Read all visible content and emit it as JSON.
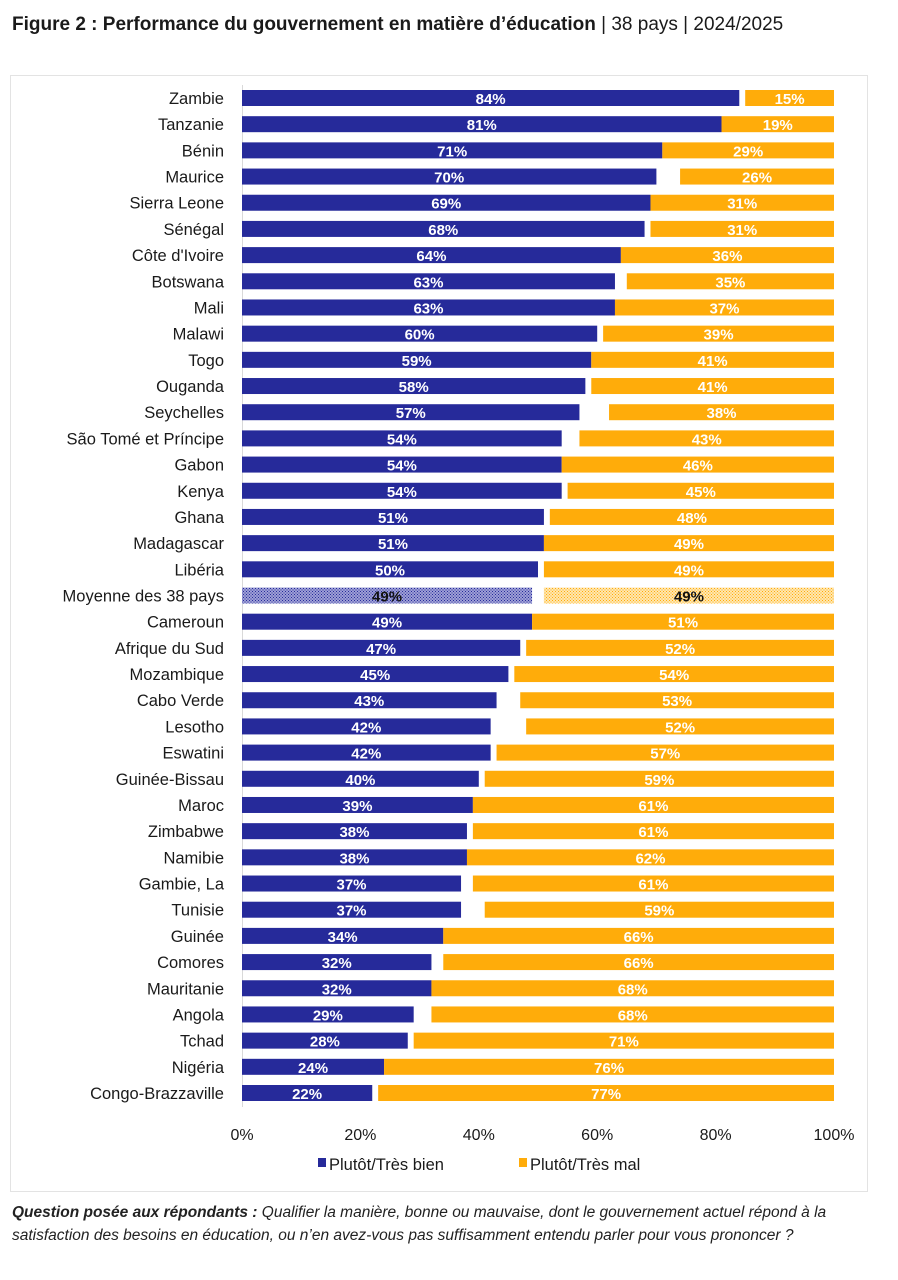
{
  "figure": {
    "title_bold": "Figure 2 : Performance du gouvernement en matière d’éducation",
    "title_rest": " | 38 pays | 2024/2025"
  },
  "note": {
    "label": "Question posée aux répondants :",
    "text": " Qualifier la manière, bonne ou mauvaise, dont le gouvernement actuel répond à la satisfaction des besoins en éducation, ou n’en avez-vous pas suffisamment entendu parler pour vous prononcer ?"
  },
  "colors": {
    "good": "#262a9a",
    "bad": "#ffac0a",
    "good_avg": "#9ea0d6",
    "bad_avg": "#ffdf9e"
  },
  "chart_data": {
    "type": "bar",
    "orientation": "horizontal-stacked",
    "title": "Performance du gouvernement en matière d’éducation | 38 pays | 2024/2025",
    "xlabel": "",
    "ylabel": "",
    "xlim": [
      0,
      100
    ],
    "xticks": [
      "0%",
      "20%",
      "40%",
      "60%",
      "80%",
      "100%"
    ],
    "grid": false,
    "legend_position": "bottom",
    "categories": [
      "Zambie",
      "Tanzanie",
      "Bénin",
      "Maurice",
      "Sierra Leone",
      "Sénégal",
      "Côte d'Ivoire",
      "Botswana",
      "Mali",
      "Malawi",
      "Togo",
      "Ouganda",
      "Seychelles",
      "São Tomé et Príncipe",
      "Gabon",
      "Kenya",
      "Ghana",
      "Madagascar",
      "Libéria",
      "Moyenne des 38 pays",
      "Cameroun",
      "Afrique du Sud",
      "Mozambique",
      "Cabo Verde",
      "Lesotho",
      "Eswatini",
      "Guinée-Bissau",
      "Maroc",
      "Zimbabwe",
      "Namibie",
      "Gambie, La",
      "Tunisie",
      "Guinée",
      "Comores",
      "Mauritanie",
      "Angola",
      "Tchad",
      "Nigéria",
      "Congo-Brazzaville"
    ],
    "highlight_category": "Moyenne des 38 pays",
    "series": [
      {
        "name": "Plutôt/Très bien",
        "values": [
          84,
          81,
          71,
          70,
          69,
          68,
          64,
          63,
          63,
          60,
          59,
          58,
          57,
          54,
          54,
          54,
          51,
          51,
          50,
          49,
          49,
          47,
          45,
          43,
          42,
          42,
          40,
          39,
          38,
          38,
          37,
          37,
          34,
          32,
          32,
          29,
          28,
          24,
          22
        ],
        "labels": [
          "84%",
          "81%",
          "71%",
          "70%",
          "69%",
          "68%",
          "64%",
          "63%",
          "63%",
          "60%",
          "59%",
          "58%",
          "57%",
          "54%",
          "54%",
          "54%",
          "51%",
          "51%",
          "50%",
          "49%",
          "49%",
          "47%",
          "45%",
          "43%",
          "42%",
          "42%",
          "40%",
          "39%",
          "38%",
          "38%",
          "37%",
          "37%",
          "34%",
          "32%",
          "32%",
          "29%",
          "28%",
          "24%",
          "22%"
        ]
      },
      {
        "name": "Plutôt/Très mal",
        "values": [
          15,
          19,
          29,
          26,
          31,
          31,
          36,
          35,
          37,
          39,
          41,
          41,
          38,
          43,
          46,
          45,
          48,
          49,
          49,
          49,
          51,
          52,
          54,
          53,
          52,
          57,
          59,
          61,
          61,
          62,
          61,
          59,
          66,
          66,
          68,
          68,
          71,
          76,
          77
        ],
        "labels": [
          "15%",
          "19%",
          "29%",
          "26%",
          "31%",
          "31%",
          "36%",
          "35%",
          "37%",
          "39%",
          "41%",
          "41%",
          "38%",
          "43%",
          "46%",
          "45%",
          "48%",
          "49%",
          "49%",
          "49%",
          "51%",
          "52%",
          "54%",
          "53%",
          "52%",
          "57%",
          "59%",
          "61%",
          "61%",
          "62%",
          "61%",
          "59%",
          "66%",
          "66%",
          "68%",
          "68%",
          "71%",
          "76%",
          "77%"
        ]
      }
    ]
  }
}
